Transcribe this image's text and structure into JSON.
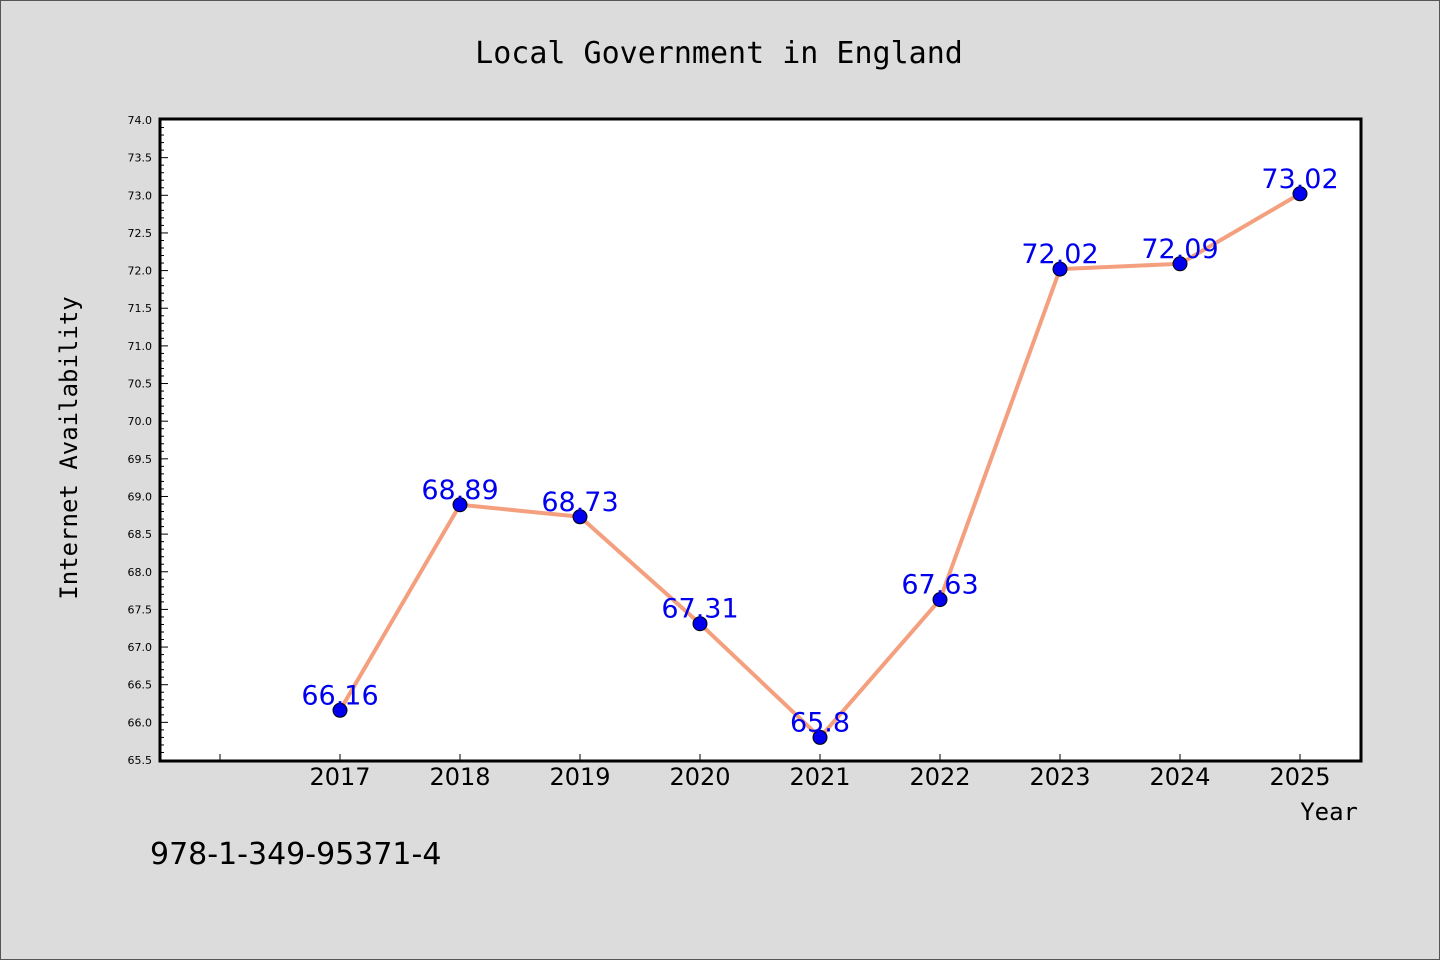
{
  "chart_data": {
    "type": "line",
    "title": "Local Government in England",
    "xlabel": "Year",
    "ylabel": "Internet Availability",
    "categories": [
      "2017",
      "2018",
      "2019",
      "2020",
      "2021",
      "2022",
      "2023",
      "2024",
      "2025"
    ],
    "series": [
      {
        "values": [
          66.16,
          68.89,
          68.73,
          67.31,
          65.8,
          67.63,
          72.02,
          72.09,
          73.02
        ],
        "labels": [
          "66.16",
          "68.89",
          "68.73",
          "67.31",
          "65.8",
          "67.63",
          "72.02",
          "72.09",
          "73.02"
        ]
      }
    ],
    "ylim": [
      65.5,
      74.0
    ],
    "yticks": [
      "65.5",
      "66.0",
      "66.5",
      "67.0",
      "67.5",
      "68.0",
      "68.5",
      "69.0",
      "69.5",
      "70.0",
      "70.5",
      "71.0",
      "71.5",
      "72.0",
      "72.5",
      "73.0",
      "73.5",
      "74.0"
    ],
    "grid": false,
    "line_color": "#f4a07f",
    "marker_color": "#0000ee",
    "label_color": "#0000ee"
  },
  "footer": {
    "isbn": "978-1-349-95371-4"
  }
}
